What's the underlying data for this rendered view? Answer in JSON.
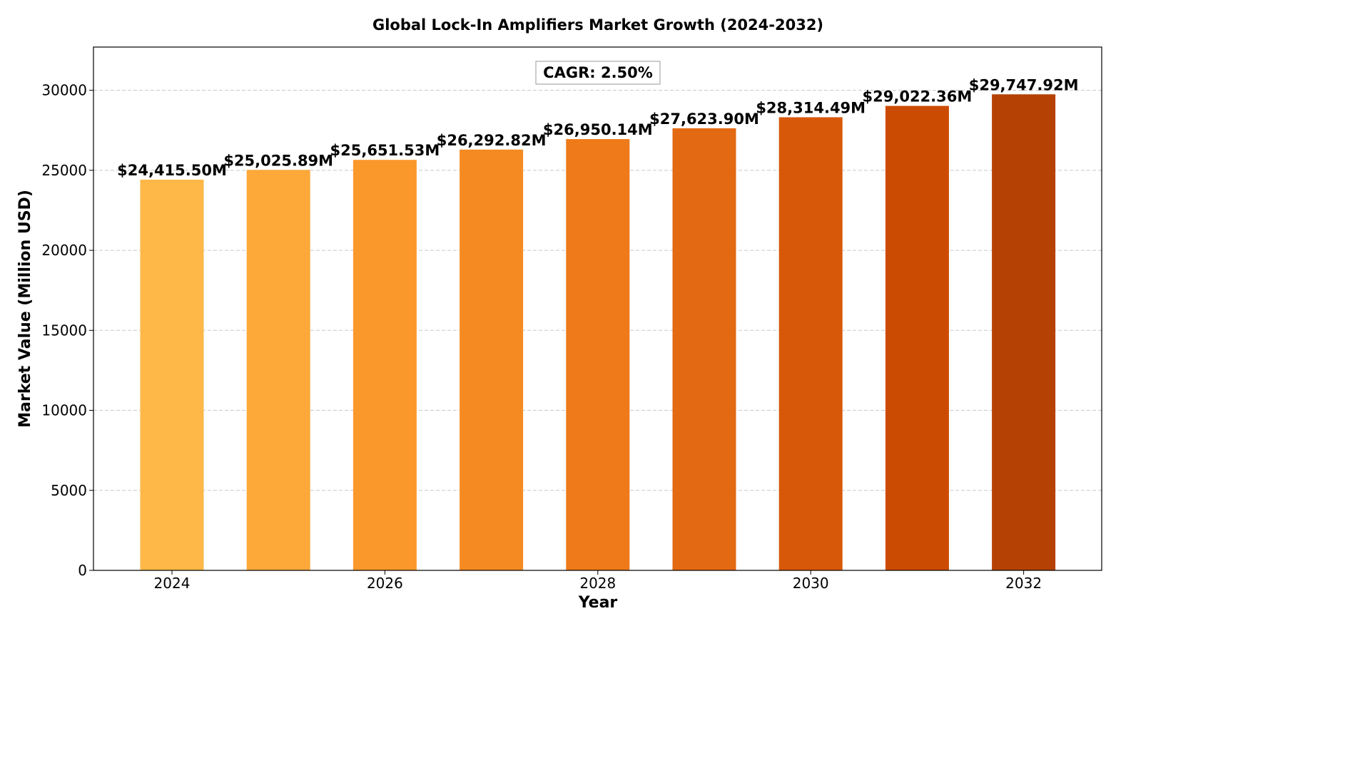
{
  "chart_data": {
    "type": "bar",
    "title": "Global Lock-In Amplifiers Market Growth (2024-2032)",
    "xlabel": "Year",
    "ylabel": "Market Value (Million USD)",
    "categories": [
      2024,
      2025,
      2026,
      2027,
      2028,
      2029,
      2030,
      2031,
      2032
    ],
    "values": [
      24415.5,
      25025.89,
      25651.53,
      26292.82,
      26950.14,
      27623.9,
      28314.49,
      29022.36,
      29747.92
    ],
    "data_labels": [
      "$24,415.50M",
      "$25,025.89M",
      "$25,651.53M",
      "$26,292.82M",
      "$26,950.14M",
      "$27,623.90M",
      "$28,314.49M",
      "$29,022.36M",
      "$29,747.92M"
    ],
    "bar_colors": [
      "#fdb847",
      "#fca93a",
      "#fb982c",
      "#f58a22",
      "#ee7a1a",
      "#e36913",
      "#d8580a",
      "#cc4b02",
      "#b54204"
    ],
    "ylim": [
      0,
      32700
    ],
    "yticks": [
      0,
      5000,
      10000,
      15000,
      20000,
      25000,
      30000
    ],
    "xticks": [
      2024,
      2026,
      2028,
      2030,
      2032
    ],
    "grid": "y-dashed",
    "annotation": "CAGR: 2.50%"
  }
}
